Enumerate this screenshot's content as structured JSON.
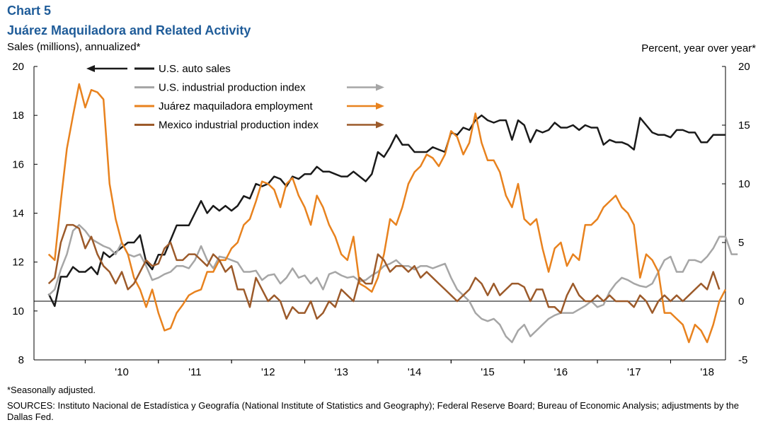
{
  "header": {
    "chart_number": "Chart 5",
    "title": "Juárez Maquiladora and Related Activity",
    "left_axis_label": "Sales (millions),  annualized*",
    "right_axis_label": "Percent, year over year*"
  },
  "footer": {
    "note": "*Seasonally adjusted.",
    "sources": "SOURCES:  Instituto Nacional de Estadística y Geografía (National Institute of Statistics and Geography); Federal Reserve Board; Bureau of Economic Analysis; adjustments by the Dallas Fed."
  },
  "chart_data": {
    "type": "line",
    "title": "Juárez Maquiladora and Related Activity",
    "x_tick_labels": [
      "'10",
      "'11",
      "'12",
      "'13",
      "'14",
      "'15",
      "'16",
      "'17",
      "'18"
    ],
    "x_tick_years": [
      2010,
      2011,
      2012,
      2013,
      2014,
      2015,
      2016,
      2017,
      2018
    ],
    "x_range": [
      2009.3,
      2018.75
    ],
    "y_left": {
      "label": "Sales (millions),  annualized*",
      "range": [
        8,
        20
      ],
      "ticks": [
        8,
        10,
        12,
        14,
        16,
        18,
        20
      ]
    },
    "y_right": {
      "label": "Percent, year over year*",
      "range": [
        -5,
        20
      ],
      "ticks": [
        -5,
        0,
        5,
        10,
        15,
        20
      ]
    },
    "grid": false,
    "legend_position": "top-center",
    "series": [
      {
        "name": "U.S. auto sales",
        "axis": "left",
        "color": "#1a1a1a",
        "legend_arrow": "left",
        "x_start": 2009.5,
        "step": 0.08333,
        "values": [
          10.7,
          10.2,
          11.4,
          11.4,
          11.8,
          11.6,
          11.6,
          11.8,
          11.5,
          12.4,
          12.2,
          12.4,
          12.6,
          12.8,
          12.8,
          13.1,
          12.0,
          11.7,
          12.3,
          12.3,
          12.9,
          13.5,
          13.5,
          13.5,
          14.0,
          14.5,
          14.0,
          14.3,
          14.1,
          14.3,
          14.1,
          14.3,
          14.7,
          14.6,
          15.2,
          15.1,
          15.2,
          15.5,
          15.4,
          15.1,
          15.5,
          15.4,
          15.6,
          15.6,
          15.9,
          15.7,
          15.7,
          15.6,
          15.5,
          15.5,
          15.7,
          15.5,
          15.3,
          15.6,
          16.5,
          16.3,
          16.7,
          17.2,
          16.8,
          16.8,
          16.5,
          16.5,
          16.5,
          16.7,
          16.6,
          16.5,
          17.3,
          17.2,
          17.5,
          17.4,
          17.8,
          18.0,
          17.8,
          17.7,
          17.8,
          17.8,
          17.0,
          17.8,
          17.6,
          16.9,
          17.4,
          17.3,
          17.4,
          17.7,
          17.5,
          17.5,
          17.6,
          17.4,
          17.6,
          17.5,
          17.5,
          16.8,
          17.0,
          16.9,
          16.9,
          16.8,
          16.6,
          17.9,
          17.6,
          17.3,
          17.2,
          17.2,
          17.1,
          17.4,
          17.4,
          17.3,
          17.3,
          16.9,
          16.9,
          17.2,
          17.2,
          17.2
        ]
      },
      {
        "name": "U.S. industrial production index",
        "axis": "right",
        "color": "#a6a6a6",
        "legend_arrow": "right",
        "x_start": 2009.5,
        "step": 0.08333,
        "values": [
          0.5,
          1.0,
          2.7,
          4.0,
          6.0,
          6.5,
          6.0,
          5.3,
          5.0,
          4.7,
          4.5,
          4.0,
          5.0,
          4.0,
          3.8,
          4.0,
          3.0,
          1.8,
          2.0,
          2.3,
          2.5,
          3.0,
          3.0,
          2.8,
          3.5,
          4.7,
          3.5,
          2.8,
          3.8,
          3.7,
          3.5,
          3.3,
          2.5,
          2.5,
          2.6,
          1.8,
          2.2,
          2.3,
          1.5,
          2.0,
          2.8,
          2.0,
          2.2,
          1.5,
          2.0,
          1.0,
          2.3,
          2.5,
          2.2,
          2.0,
          2.1,
          1.7,
          1.8,
          2.2,
          2.5,
          3.0,
          3.2,
          3.5,
          3.0,
          3.0,
          2.7,
          3.0,
          3.0,
          2.8,
          3.0,
          3.2,
          2.0,
          1.0,
          0.5,
          0.0,
          -1.0,
          -1.5,
          -1.7,
          -1.5,
          -2.0,
          -3.0,
          -3.5,
          -2.5,
          -2.0,
          -3.0,
          -2.5,
          -2.0,
          -1.5,
          -1.2,
          -1.0,
          -1.0,
          -1.0,
          -0.7,
          -0.4,
          0.0,
          -0.5,
          -0.3,
          0.8,
          1.5,
          2.0,
          1.8,
          1.5,
          1.3,
          1.2,
          1.5,
          2.5,
          3.5,
          3.8,
          2.5,
          2.5,
          3.5,
          3.5,
          3.3,
          3.8,
          4.5,
          5.5,
          5.5,
          4.0,
          4.0
        ]
      },
      {
        "name": "Juárez maquiladora employment",
        "axis": "right",
        "color": "#e8821e",
        "legend_arrow": "right",
        "x_start": 2009.5,
        "step": 0.08333,
        "values": [
          4.0,
          3.5,
          8.5,
          13.0,
          15.8,
          18.5,
          16.5,
          18.0,
          17.8,
          17.2,
          10.0,
          7.0,
          5.0,
          4.0,
          2.0,
          1.0,
          -0.5,
          1.0,
          -1.0,
          -2.5,
          -2.3,
          -1.0,
          -0.3,
          0.5,
          0.8,
          1.0,
          2.5,
          2.5,
          3.5,
          3.5,
          4.5,
          5.0,
          6.5,
          7.0,
          8.5,
          10.2,
          10.0,
          9.5,
          8.0,
          10.0,
          10.5,
          9.0,
          8.0,
          6.5,
          9.0,
          8.0,
          6.5,
          5.5,
          4.0,
          3.5,
          5.5,
          1.5,
          1.2,
          0.8,
          2.0,
          4.0,
          7.0,
          6.5,
          8.0,
          10.0,
          11.0,
          11.5,
          12.5,
          12.2,
          11.5,
          12.5,
          14.5,
          14.0,
          12.5,
          13.5,
          16.0,
          13.5,
          12.0,
          12.0,
          11.0,
          9.0,
          8.0,
          10.0,
          7.0,
          6.5,
          7.0,
          4.5,
          2.5,
          4.5,
          5.0,
          3.0,
          4.0,
          3.5,
          6.5,
          6.5,
          7.0,
          8.0,
          8.5,
          9.0,
          8.0,
          7.5,
          6.5,
          2.0,
          4.0,
          3.5,
          2.5,
          -1.0,
          -1.0,
          -1.5,
          -2.0,
          -3.5,
          -2.0,
          -2.5,
          -3.5,
          -2.0,
          0.0,
          1.0
        ]
      },
      {
        "name": "Mexico industrial production index",
        "axis": "right",
        "color": "#9c5a2a",
        "legend_arrow": "right",
        "x_start": 2009.5,
        "step": 0.08333,
        "values": [
          1.5,
          2.0,
          5.0,
          6.5,
          6.5,
          6.2,
          4.5,
          5.5,
          4.0,
          3.0,
          2.5,
          1.5,
          2.5,
          1.0,
          1.5,
          2.5,
          3.5,
          3.0,
          3.2,
          4.5,
          5.0,
          3.5,
          3.5,
          4.0,
          4.0,
          3.5,
          3.0,
          4.0,
          3.5,
          2.5,
          3.0,
          1.0,
          1.0,
          -0.5,
          2.0,
          1.0,
          0.0,
          0.5,
          0.0,
          -1.5,
          -0.5,
          -1.0,
          -1.0,
          0.0,
          -1.5,
          -1.0,
          0.0,
          -0.5,
          1.0,
          0.5,
          0.0,
          2.0,
          1.5,
          1.5,
          4.0,
          3.5,
          2.5,
          3.0,
          3.0,
          2.5,
          3.0,
          2.0,
          2.5,
          2.0,
          1.5,
          1.0,
          0.5,
          0.0,
          0.5,
          1.0,
          2.0,
          1.5,
          0.5,
          1.5,
          0.5,
          1.0,
          1.5,
          1.5,
          1.2,
          0.0,
          1.0,
          1.0,
          -0.5,
          -0.5,
          -1.0,
          0.5,
          1.5,
          0.5,
          0.0,
          0.0,
          0.5,
          0.0,
          0.5,
          0.0,
          0.0,
          0.0,
          -0.5,
          0.5,
          0.0,
          -1.0,
          0.0,
          0.5,
          0.0,
          0.5,
          0.0,
          0.5,
          1.0,
          1.5,
          1.0,
          2.5,
          1.0
        ]
      }
    ]
  }
}
